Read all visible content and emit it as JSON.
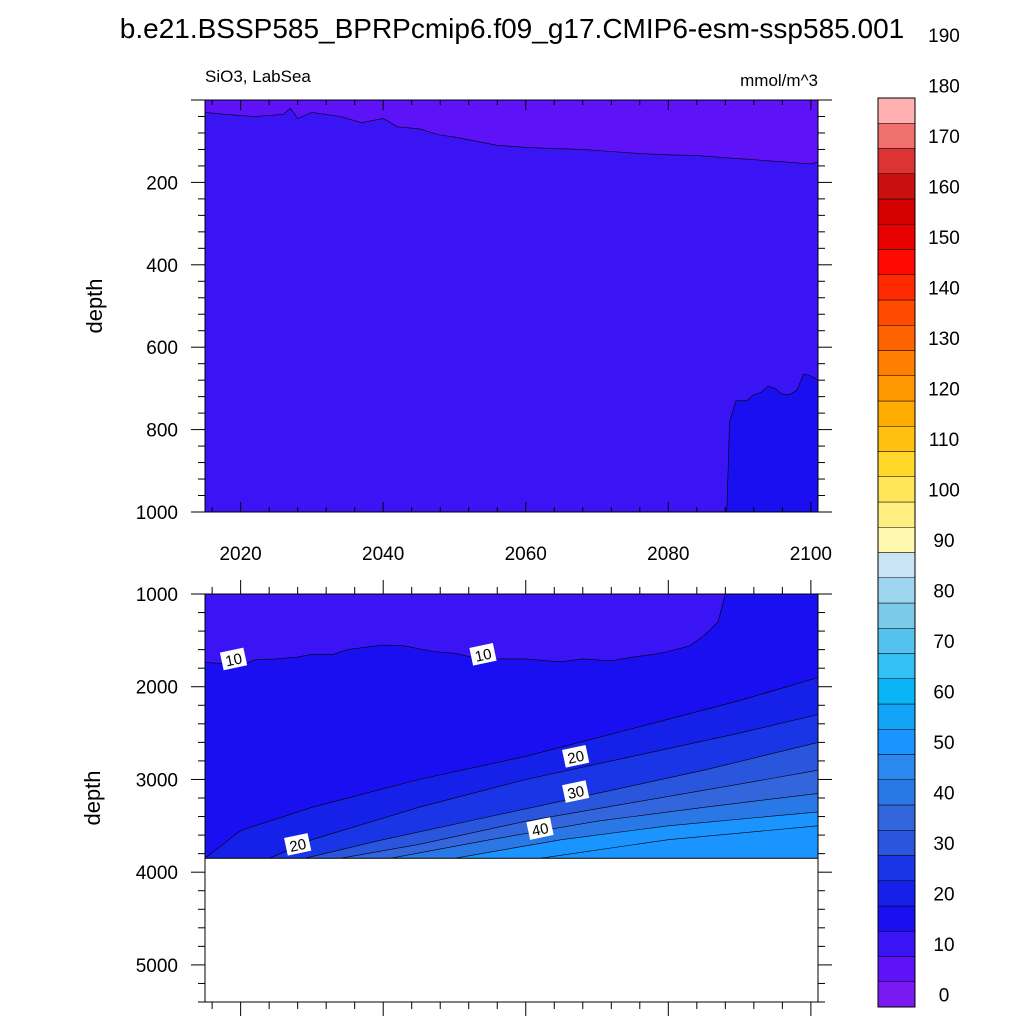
{
  "title": "b.e21.BSSP585_BPRPcmip6.f09_g17.CMIP6-esm-ssp585.001",
  "chart_data": [
    {
      "type": "contour",
      "panel": "upper",
      "left_label": "SiO3, LabSea",
      "right_label": "mmol/m^3",
      "ylabel": "depth",
      "xlim": [
        2015,
        2101
      ],
      "ylim": [
        1000,
        0
      ],
      "xticks": [
        "2020",
        "2040",
        "2060",
        "2080",
        "2100"
      ],
      "yticks": [
        "200",
        "400",
        "600",
        "800",
        "1000"
      ],
      "regions": [
        {
          "level": "0-5",
          "color": "#5d12f7",
          "desc": "surface layer"
        },
        {
          "level": "5-10",
          "color": "#3a14f5",
          "desc": "bulk"
        },
        {
          "level": "10-15",
          "color": "#1a0ff0",
          "desc": "deep, after 2088"
        }
      ],
      "contour_5_depth": {
        "years": [
          2015,
          2018,
          2022,
          2026,
          2027,
          2028,
          2030,
          2034,
          2037,
          2040,
          2042,
          2045,
          2048,
          2050,
          2053,
          2056,
          2060,
          2064,
          2068,
          2072,
          2076,
          2080,
          2084,
          2088,
          2092,
          2096,
          2100,
          2101
        ],
        "depth": [
          30,
          35,
          40,
          35,
          20,
          45,
          30,
          40,
          55,
          45,
          65,
          70,
          85,
          90,
          100,
          110,
          115,
          118,
          120,
          125,
          130,
          133,
          135,
          140,
          145,
          150,
          155,
          150
        ]
      },
      "contour_10": {
        "x": [
          2088.2,
          2088.6,
          2089.5,
          2091,
          2092,
          2093,
          2094,
          2095,
          2096,
          2097,
          2098,
          2099,
          2100,
          2101
        ],
        "depth": [
          1000,
          780,
          730,
          730,
          715,
          710,
          695,
          700,
          715,
          715,
          705,
          665,
          670,
          680
        ]
      }
    },
    {
      "type": "contour",
      "panel": "lower",
      "ylabel": "depth",
      "xlim": [
        2015,
        2101
      ],
      "ylim": [
        1000,
        5400
      ],
      "yticks": [
        "1000",
        "2000",
        "3000",
        "4000",
        "5000"
      ],
      "bottom_depth": 3850,
      "levels": [
        10,
        15,
        20,
        25,
        30,
        35,
        40,
        45
      ],
      "fill_colors": [
        "#3a14f5",
        "#1a0ff0",
        "#1521e8",
        "#1935e6",
        "#2a55dd",
        "#3366dd",
        "#2a78e6",
        "#1a95ff"
      ],
      "contour_labels": [
        {
          "text": "10",
          "year": 2019,
          "depth": 1700
        },
        {
          "text": "10",
          "year": 2054,
          "depth": 1650
        },
        {
          "text": "20",
          "year": 2067,
          "depth": 2750
        },
        {
          "text": "30",
          "year": 2067,
          "depth": 3130
        },
        {
          "text": "40",
          "year": 2062,
          "depth": 3530
        },
        {
          "text": "20",
          "year": 2028,
          "depth": 3700
        }
      ]
    }
  ],
  "colorbar": {
    "labels": [
      "0",
      "10",
      "20",
      "30",
      "40",
      "50",
      "60",
      "70",
      "80",
      "90",
      "100",
      "110",
      "120",
      "130",
      "140",
      "150",
      "160",
      "170",
      "180",
      "190"
    ],
    "colors": [
      "#7b1af0",
      "#5d12f7",
      "#3a14f5",
      "#1a0ff0",
      "#1521e8",
      "#1935e6",
      "#2a55dd",
      "#3366dd",
      "#2a78e6",
      "#2a88ef",
      "#1a95ff",
      "#12a5f7",
      "#0ab5f5",
      "#32c0f5",
      "#55c2ee",
      "#7acae9",
      "#a0d5f0",
      "#c8e4f5",
      "#fff9b0",
      "#ffef80",
      "#ffe55a",
      "#ffd82a",
      "#ffc010",
      "#ffab00",
      "#ff9800",
      "#ff7f00",
      "#ff6200",
      "#ff4a00",
      "#ff2a00",
      "#ff0a00",
      "#e80000",
      "#d40000",
      "#c81010",
      "#de3333",
      "#f07070",
      "#ffb0b0"
    ]
  }
}
